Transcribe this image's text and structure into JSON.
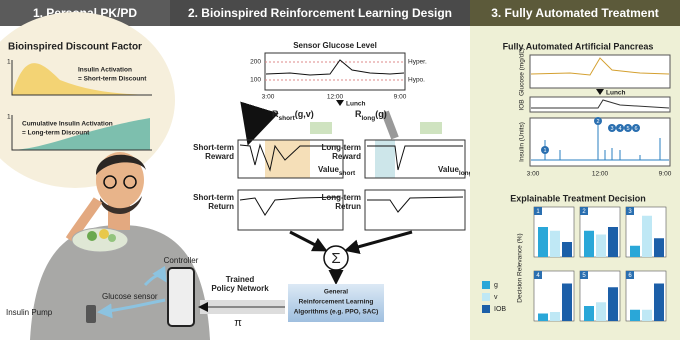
{
  "header": {
    "sections": [
      "1. Personal PK/PD",
      "2. Bioinspired Reinforcement Learning Design",
      "3. Fully Automated Treatment"
    ]
  },
  "pkpd": {
    "title": "Bioinspired Discount Factor",
    "short": {
      "axis": "1",
      "lines": [
        "Insulin Activation",
        "= Short-term Discount"
      ]
    },
    "long": {
      "axis": "1",
      "lines": [
        "Cumulative Insulin Activation",
        "= Long-term Discount"
      ]
    },
    "controller": "Controller",
    "sensor": "Glucose sensor",
    "pump": "Insulin Pump"
  },
  "rl": {
    "chart_title": "Sensor Glucose Level",
    "yticks": [
      "200",
      "100"
    ],
    "hyper": "Hyper.",
    "hypo": "Hypo.",
    "xticks": [
      "3:00",
      "12:00",
      "9:00"
    ],
    "event": "Lunch",
    "r_short": {
      "symbol": "R",
      "sub": "short",
      "args": "(g,v)"
    },
    "r_long": {
      "symbol": "R",
      "sub": "long",
      "args": "(g)"
    },
    "short_reward": [
      "Short-term",
      "Reward"
    ],
    "long_reward": [
      "Long-term",
      "Reward"
    ],
    "value_short": {
      "symbol": "Value",
      "sub": "short"
    },
    "value_long": {
      "symbol": "Value",
      "sub": "long"
    },
    "short_return": [
      "Short-term",
      "Return"
    ],
    "long_return": [
      "Long-term",
      "Retrun"
    ],
    "sum": "Σ",
    "algo": [
      "General",
      "Reinforcement Learning",
      "Algorithms (e.g. PPO, SAC)"
    ],
    "policy": [
      "Trained",
      "Policy Network"
    ],
    "pi": "π"
  },
  "treatment": {
    "title": "Fully Automated Artificial Pancreas",
    "glucose_label": "Glucose (mg/dL)",
    "iob_label": "IOB",
    "insulin_label": "Insulin (Units)",
    "xticks": [
      "3:00",
      "12:00",
      "9:00"
    ],
    "event": "Lunch",
    "markers": [
      "1",
      "2",
      "3",
      "4",
      "5",
      "6"
    ],
    "decisions": {
      "title": "Explainable Treatment Decision",
      "axis_label": "Decision Relevance (%)",
      "legend": [
        {
          "name": "g",
          "color": "#2aa7d8"
        },
        {
          "name": "v",
          "color": "#bfe8f5"
        },
        {
          "name": "IOB",
          "color": "#1c5fa8"
        }
      ],
      "panels": [
        {
          "label": "1",
          "values": [
            40,
            35,
            20
          ]
        },
        {
          "label": "2",
          "values": [
            35,
            30,
            40
          ]
        },
        {
          "label": "3",
          "values": [
            15,
            55,
            25
          ]
        },
        {
          "label": "4",
          "values": [
            10,
            12,
            50
          ]
        },
        {
          "label": "5",
          "values": [
            20,
            25,
            45
          ]
        },
        {
          "label": "6",
          "values": [
            15,
            15,
            50
          ]
        }
      ]
    }
  }
}
